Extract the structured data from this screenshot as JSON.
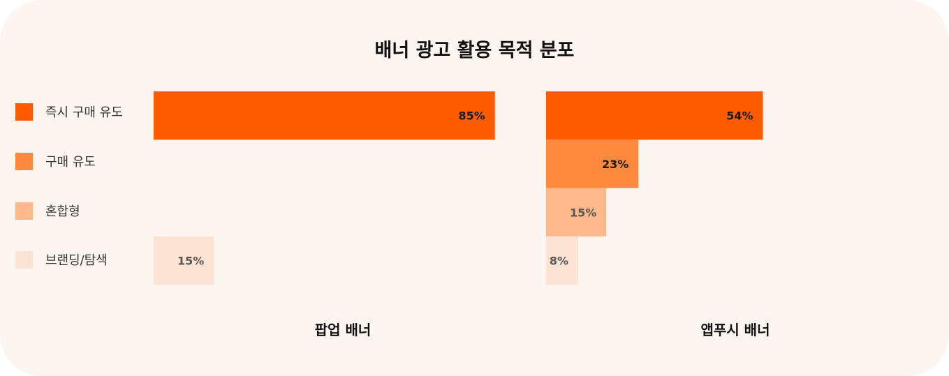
{
  "chart_data": {
    "type": "bar",
    "title": "배너 광고 활용 목적 분포",
    "categories": [
      "즉시 구매 유도",
      "구매 유도",
      "혼합형",
      "브랜딩/탐색"
    ],
    "colors": [
      "#ff5c00",
      "#ff8a3d",
      "#ffb98b",
      "#fde3d4"
    ],
    "label_colors": [
      "#1a1a1a",
      "#1a1a1a",
      "#555555",
      "#555555"
    ],
    "value_suffix": "%",
    "series": [
      {
        "name": "팝업 배너",
        "values": [
          85,
          0,
          0,
          15
        ]
      },
      {
        "name": "앱푸시 배너",
        "values": [
          54,
          23,
          15,
          8
        ]
      }
    ],
    "xlim": [
      0,
      100
    ]
  }
}
